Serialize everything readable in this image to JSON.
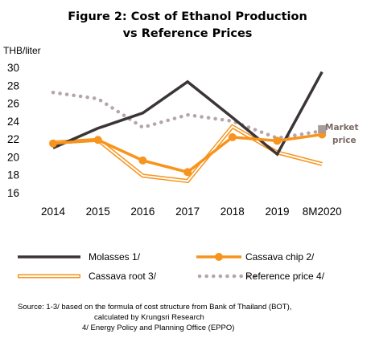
{
  "chart_data": {
    "type": "line",
    "title_lines": [
      "Figure 2: Cost of Ethanol Production",
      "vs Reference Prices"
    ],
    "ylabel": "THB/liter",
    "ylim": [
      16,
      30
    ],
    "yticks": [
      "16",
      "18",
      "20",
      "22",
      "24",
      "26",
      "28",
      "30"
    ],
    "categories": [
      "2014",
      "2015",
      "2016",
      "2017",
      "2018",
      "2019",
      "8M2020"
    ],
    "grid": false,
    "legend_position": "bottom",
    "series": [
      {
        "name": "Molasses 1/",
        "color": "#3b3538",
        "style": "solid",
        "values": [
          21.0,
          23.2,
          24.9,
          28.4,
          24.4,
          20.3,
          29.5
        ]
      },
      {
        "name": "Cassava chip 2/",
        "color": "#f7941d",
        "style": "solid-markers",
        "values": [
          21.5,
          21.9,
          19.6,
          18.3,
          22.2,
          21.8,
          22.5
        ]
      },
      {
        "name": "Cassava root 3/",
        "color": "#f7941d",
        "style": "double-line",
        "values": [
          21.6,
          21.9,
          17.9,
          17.3,
          23.4,
          20.5,
          19.2
        ]
      },
      {
        "name": "Reference price 4/",
        "color": "#b5a5a8",
        "style": "dotted",
        "values": [
          27.2,
          26.5,
          23.3,
          24.7,
          24.0,
          22.1,
          22.9
        ]
      }
    ],
    "annotation": {
      "lines": [
        "Market",
        "price"
      ],
      "marker_value": 23.1,
      "color": "#a89b98"
    }
  },
  "source_lines": [
    "Source: 1-3/ based on the formula of cost structure from Bank of Thailand (BOT),",
    "calculated by Krungsri Research",
    "4/ Energy Policy and Planning Office (EPPO)"
  ]
}
